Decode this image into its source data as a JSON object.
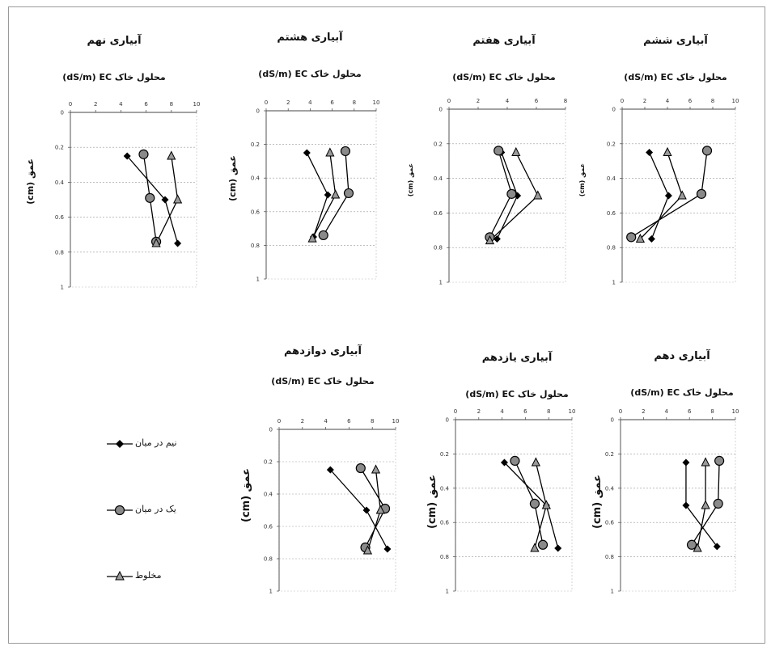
{
  "series_names": [
    "نیم در میان",
    "یک در میان",
    "مخلوط"
  ],
  "y_axis_label": "عمق (cm)",
  "x_axis_label": "(dS/m) EC محلول خاک",
  "chart_data": [
    {
      "type": "line",
      "title": "آبیاری ششم",
      "xlim": [
        0,
        10
      ],
      "ylim": [
        0,
        1
      ],
      "xticks": [
        "0",
        "2",
        "4",
        "6",
        "8",
        "10"
      ],
      "yticks": [
        "0",
        "0.2",
        "0.4",
        "0.6",
        "0.8",
        "1"
      ],
      "series": [
        {
          "name": "نیم در میان",
          "marker": "diamond",
          "points": [
            [
              2.4,
              0.25
            ],
            [
              4.1,
              0.5
            ],
            [
              2.6,
              0.75
            ]
          ]
        },
        {
          "name": "یک در میان",
          "marker": "circle",
          "points": [
            [
              7.5,
              0.24
            ],
            [
              7.0,
              0.49
            ],
            [
              0.8,
              0.74
            ]
          ]
        },
        {
          "name": "مخلوط",
          "marker": "triangle",
          "points": [
            [
              4.0,
              0.25
            ],
            [
              5.3,
              0.5
            ],
            [
              1.6,
              0.75
            ]
          ]
        }
      ]
    },
    {
      "type": "line",
      "title": "آبیاری هفتم",
      "xlim": [
        0,
        8
      ],
      "ylim": [
        0,
        1
      ],
      "xticks": [
        "0",
        "2",
        "4",
        "6",
        "8"
      ],
      "yticks": [
        "0",
        "0.2",
        "0.4",
        "0.6",
        "0.8",
        "1"
      ],
      "series": [
        {
          "name": "نیم در میان",
          "marker": "diamond",
          "points": [
            [
              3.6,
              0.25
            ],
            [
              4.7,
              0.5
            ],
            [
              3.3,
              0.75
            ]
          ]
        },
        {
          "name": "یک در میان",
          "marker": "circle",
          "points": [
            [
              3.4,
              0.24
            ],
            [
              4.3,
              0.49
            ],
            [
              2.8,
              0.74
            ]
          ]
        },
        {
          "name": "مخلوط",
          "marker": "triangle",
          "points": [
            [
              4.6,
              0.25
            ],
            [
              6.1,
              0.5
            ],
            [
              2.8,
              0.76
            ]
          ]
        }
      ]
    },
    {
      "type": "line",
      "title": "آبیاری هشتم",
      "xlim": [
        0,
        10
      ],
      "ylim": [
        0,
        1
      ],
      "xticks": [
        "0",
        "2",
        "4",
        "6",
        "8",
        "10"
      ],
      "yticks": [
        "0",
        "0.2",
        "0.4",
        "0.6",
        "0.8",
        "1"
      ],
      "series": [
        {
          "name": "نیم در میان",
          "marker": "diamond",
          "points": [
            [
              3.7,
              0.25
            ],
            [
              5.6,
              0.5
            ],
            [
              4.3,
              0.75
            ]
          ]
        },
        {
          "name": "یک در میان",
          "marker": "circle",
          "points": [
            [
              7.2,
              0.24
            ],
            [
              7.5,
              0.49
            ],
            [
              5.2,
              0.74
            ]
          ]
        },
        {
          "name": "مخلوط",
          "marker": "triangle",
          "points": [
            [
              5.8,
              0.25
            ],
            [
              6.3,
              0.5
            ],
            [
              4.2,
              0.76
            ]
          ]
        }
      ]
    },
    {
      "type": "line",
      "title": "آبیاری نهم",
      "xlim": [
        0,
        10
      ],
      "ylim": [
        0,
        1
      ],
      "xticks": [
        "0",
        "2",
        "4",
        "6",
        "8",
        "10"
      ],
      "yticks": [
        "0",
        "0.2",
        "0.4",
        "0.6",
        "0.8",
        "1"
      ],
      "series": [
        {
          "name": "نیم در میان",
          "marker": "diamond",
          "points": [
            [
              4.5,
              0.25
            ],
            [
              7.5,
              0.5
            ],
            [
              8.5,
              0.75
            ]
          ]
        },
        {
          "name": "یک در میان",
          "marker": "circle",
          "points": [
            [
              5.8,
              0.24
            ],
            [
              6.3,
              0.49
            ],
            [
              6.8,
              0.74
            ]
          ]
        },
        {
          "name": "مخلوط",
          "marker": "triangle",
          "points": [
            [
              8.0,
              0.25
            ],
            [
              8.5,
              0.5
            ],
            [
              6.8,
              0.75
            ]
          ]
        }
      ]
    },
    {
      "type": "line",
      "title": "آبیاری دهم",
      "xlim": [
        0,
        10
      ],
      "ylim": [
        0,
        1
      ],
      "xticks": [
        "0",
        "2",
        "4",
        "6",
        "8",
        "10"
      ],
      "yticks": [
        "0",
        "0.2",
        "0.4",
        "0.6",
        "0.8",
        "1"
      ],
      "series": [
        {
          "name": "نیم در میان",
          "marker": "diamond",
          "points": [
            [
              5.7,
              0.25
            ],
            [
              5.7,
              0.5
            ],
            [
              8.4,
              0.74
            ]
          ]
        },
        {
          "name": "یک در میان",
          "marker": "circle",
          "points": [
            [
              8.6,
              0.24
            ],
            [
              8.5,
              0.49
            ],
            [
              6.2,
              0.73
            ]
          ]
        },
        {
          "name": "مخلوط",
          "marker": "triangle",
          "points": [
            [
              7.4,
              0.25
            ],
            [
              7.4,
              0.5
            ],
            [
              6.7,
              0.75
            ]
          ]
        }
      ]
    },
    {
      "type": "line",
      "title": "آبیاری یازدهم",
      "xlim": [
        0,
        10
      ],
      "ylim": [
        0,
        1
      ],
      "xticks": [
        "0",
        "2",
        "4",
        "6",
        "8",
        "10"
      ],
      "yticks": [
        "0",
        "0.2",
        "0.4",
        "0.6",
        "0.8",
        "1"
      ],
      "series": [
        {
          "name": "نیم در میان",
          "marker": "diamond",
          "points": [
            [
              4.2,
              0.25
            ],
            [
              7.8,
              0.5
            ],
            [
              8.8,
              0.75
            ]
          ]
        },
        {
          "name": "یک در میان",
          "marker": "circle",
          "points": [
            [
              5.1,
              0.24
            ],
            [
              6.8,
              0.49
            ],
            [
              7.5,
              0.73
            ]
          ]
        },
        {
          "name": "مخلوط",
          "marker": "triangle",
          "points": [
            [
              6.9,
              0.25
            ],
            [
              7.8,
              0.5
            ],
            [
              6.8,
              0.75
            ]
          ]
        }
      ]
    },
    {
      "type": "line",
      "title": "آبیاری دوازدهم",
      "xlim": [
        0,
        10
      ],
      "ylim": [
        0,
        1
      ],
      "xticks": [
        "0",
        "2",
        "4",
        "6",
        "8",
        "10"
      ],
      "yticks": [
        "0",
        "0.2",
        "0.4",
        "0.6",
        "0.8",
        "1"
      ],
      "series": [
        {
          "name": "نیم در میان",
          "marker": "diamond",
          "points": [
            [
              4.4,
              0.25
            ],
            [
              7.5,
              0.5
            ],
            [
              9.3,
              0.74
            ]
          ]
        },
        {
          "name": "یک در میان",
          "marker": "circle",
          "points": [
            [
              7.0,
              0.24
            ],
            [
              9.1,
              0.49
            ],
            [
              7.4,
              0.73
            ]
          ]
        },
        {
          "name": "مخلوط",
          "marker": "triangle",
          "points": [
            [
              8.3,
              0.25
            ],
            [
              8.7,
              0.5
            ],
            [
              7.6,
              0.75
            ]
          ]
        }
      ]
    }
  ]
}
